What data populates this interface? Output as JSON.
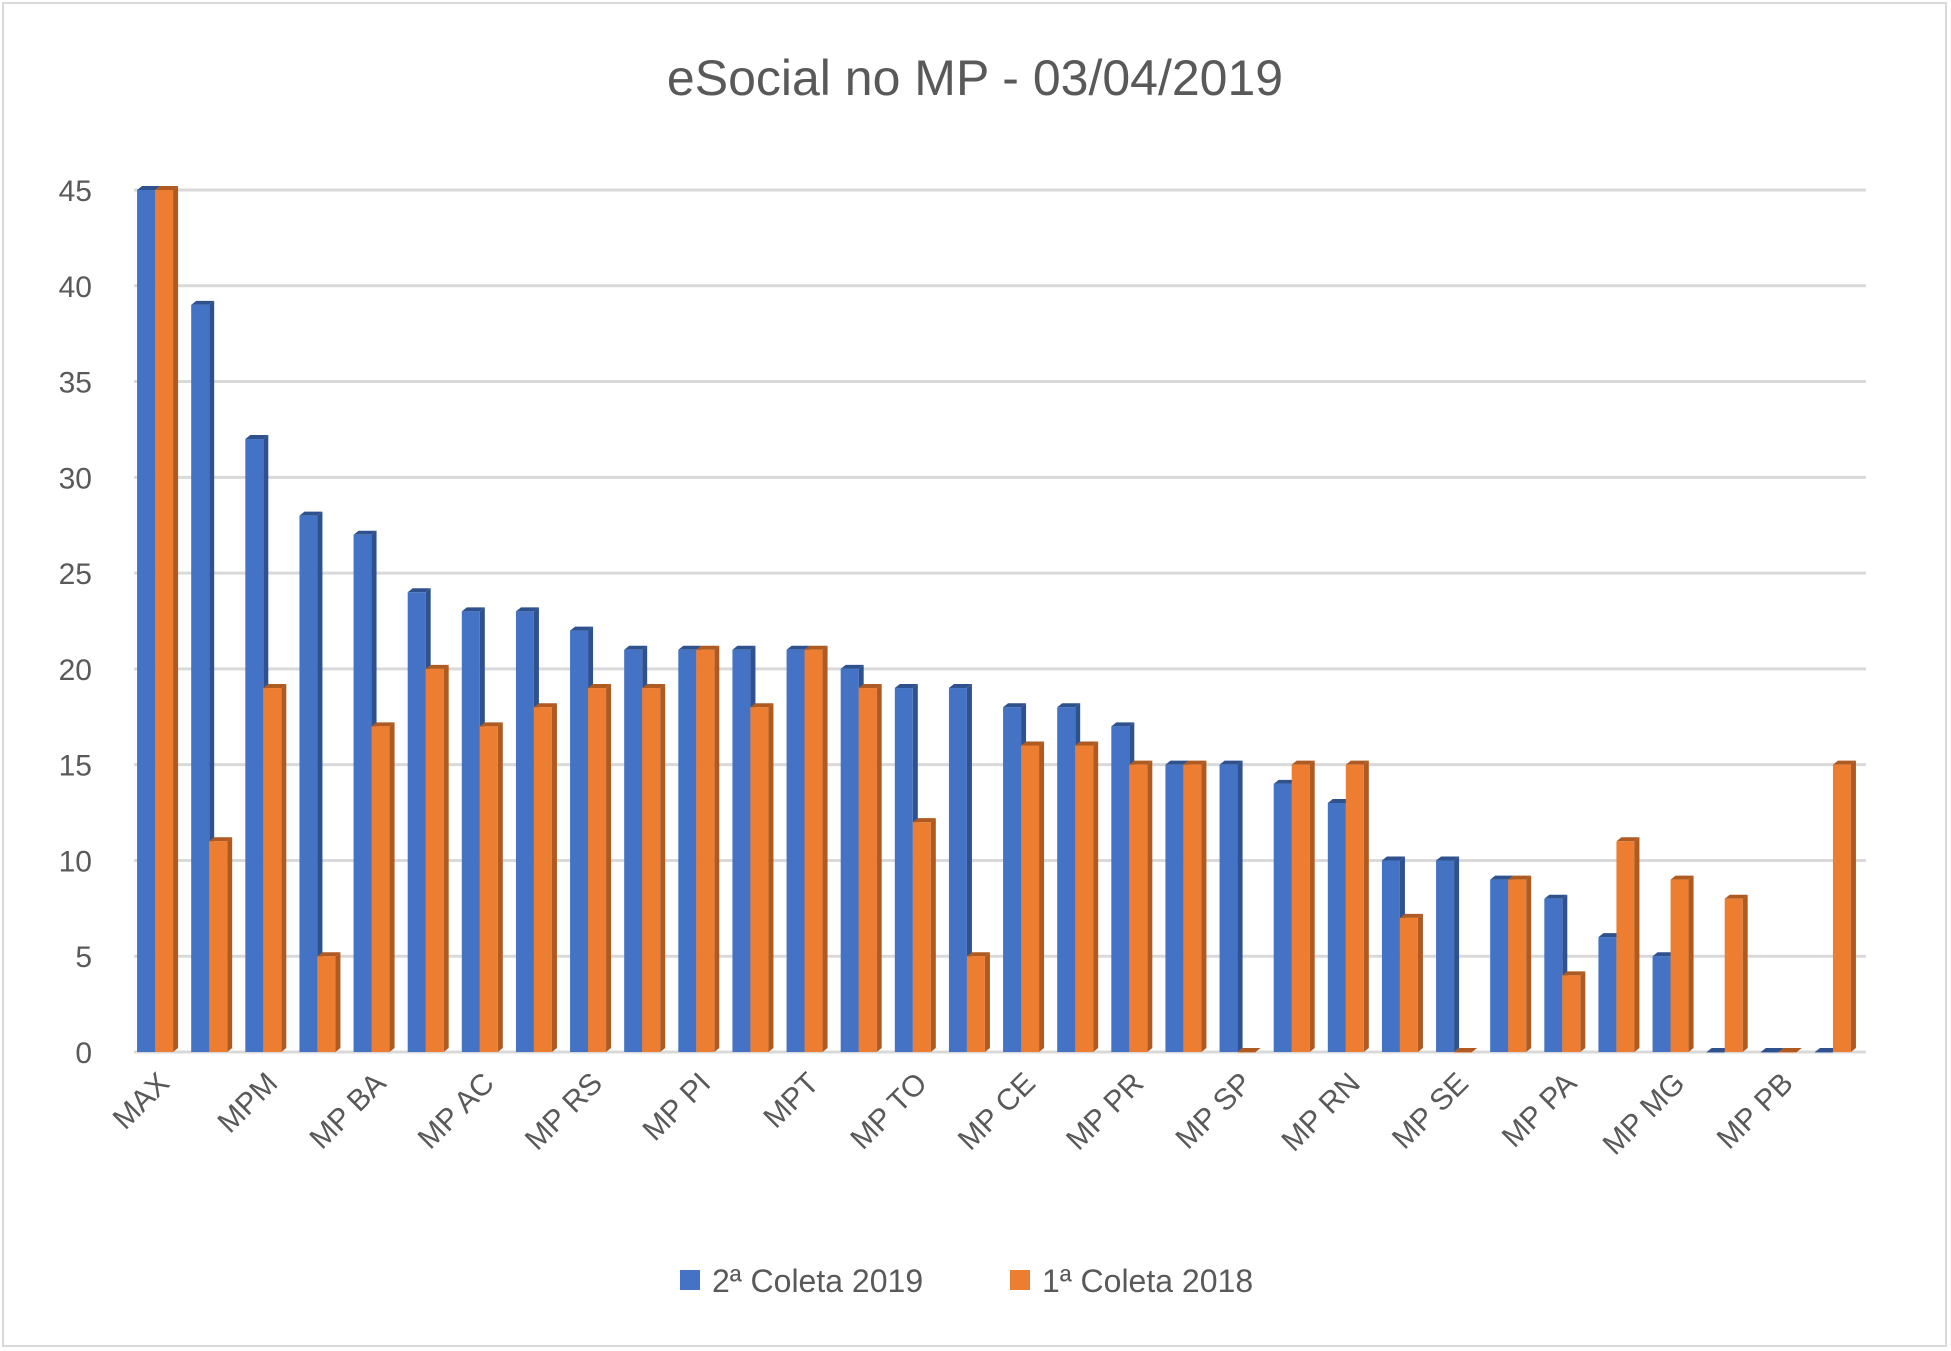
{
  "chart_data": {
    "type": "bar",
    "title": "eSocial no MP - 03/04/2019",
    "xlabel": "",
    "ylabel": "",
    "ylim": [
      0,
      45
    ],
    "yticks": [
      0,
      5,
      10,
      15,
      20,
      25,
      30,
      35,
      40,
      45
    ],
    "grid": true,
    "legend_position": "bottom",
    "categories": [
      "MAX",
      "",
      "MPM",
      "",
      "MP BA",
      "",
      "MP AC",
      "",
      "MP RS",
      "",
      "MP PI",
      "",
      "MPT",
      "",
      "MP TO",
      "",
      "MP CE",
      "",
      "MP PR",
      "",
      "MP SP",
      "",
      "MP RN",
      "",
      "MP SE",
      "",
      "MP PA",
      "",
      "MP MG",
      "",
      "MP PB",
      ""
    ],
    "series": [
      {
        "name": "2ª Coleta 2019",
        "color": "#4472c4",
        "side": "#2f528f",
        "values": [
          45,
          39,
          32,
          28,
          27,
          24,
          23,
          23,
          22,
          21,
          21,
          21,
          21,
          20,
          19,
          19,
          18,
          18,
          17,
          15,
          15,
          14,
          13,
          10,
          10,
          9,
          8,
          6,
          5,
          0,
          0,
          0
        ]
      },
      {
        "name": "1ª Coleta 2018",
        "color": "#ed7d31",
        "side": "#ae5a21",
        "values": [
          45,
          11,
          19,
          5,
          17,
          20,
          17,
          18,
          19,
          19,
          21,
          18,
          21,
          19,
          12,
          5,
          16,
          16,
          15,
          15,
          0,
          15,
          15,
          7,
          0,
          9,
          4,
          11,
          9,
          8,
          0,
          15
        ]
      }
    ]
  }
}
